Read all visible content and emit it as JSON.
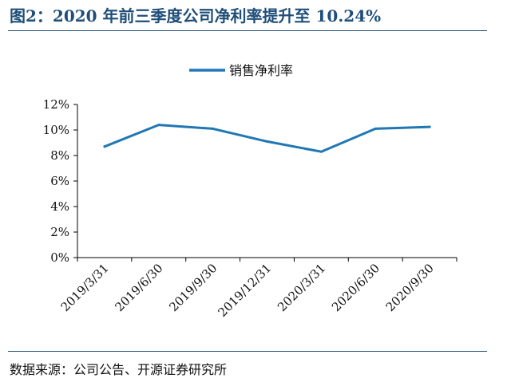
{
  "header": {
    "title": "图2：2020 年前三季度公司净利率提升至 10.24%"
  },
  "footer": {
    "source": "数据来源：公司公告、开源证券研究所"
  },
  "colors": {
    "series": "#1f77b4",
    "accent": "#1f4e79",
    "axis": "#000000"
  },
  "chart_data": {
    "type": "line",
    "categories": [
      "2019/3/31",
      "2019/6/30",
      "2019/9/30",
      "2019/12/31",
      "2020/3/31",
      "2020/6/30",
      "2020/9/30"
    ],
    "series": [
      {
        "name": "销售净利率",
        "values": [
          8.7,
          10.4,
          10.1,
          9.1,
          8.3,
          10.1,
          10.24
        ]
      }
    ],
    "yticks": [
      "0%",
      "2%",
      "4%",
      "6%",
      "8%",
      "10%",
      "12%"
    ],
    "ylim": [
      0,
      12
    ],
    "grid": false,
    "legend": "top-center"
  }
}
